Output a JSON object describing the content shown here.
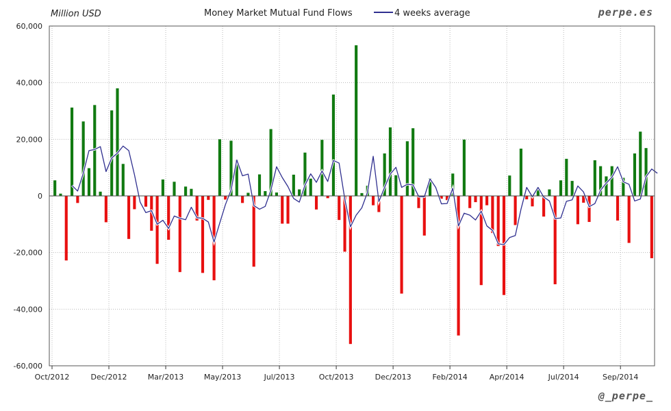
{
  "chart_data": {
    "type": "bar",
    "title": "Money Market Mutual Fund Flows",
    "ylabel": "Million USD",
    "legend": [
      {
        "name": "4 weeks average",
        "color": "#2f2f8f"
      }
    ],
    "watermark_top": "perpe.es",
    "watermark_bottom": "@_perpe_",
    "ylim": [
      -60000,
      60000
    ],
    "yticks": [
      {
        "value": 60000,
        "label": "60,000"
      },
      {
        "value": 40000,
        "label": "40,000"
      },
      {
        "value": 20000,
        "label": "20,000"
      },
      {
        "value": 0,
        "label": "0"
      },
      {
        "value": -20000,
        "label": "-20,000"
      },
      {
        "value": -40000,
        "label": "-40,000"
      },
      {
        "value": -60000,
        "label": "-60,000"
      }
    ],
    "xticks": [
      {
        "week": 0,
        "label": "Oct/2012"
      },
      {
        "week": 10,
        "label": "Dec/2012"
      },
      {
        "week": 20,
        "label": "Mar/2013"
      },
      {
        "week": 30,
        "label": "May/2013"
      },
      {
        "week": 40,
        "label": "Jul/2013"
      },
      {
        "week": 50,
        "label": "Oct/2013"
      },
      {
        "week": 60,
        "label": "Dec/2013"
      },
      {
        "week": 70,
        "label": "Feb/2014"
      },
      {
        "week": 80,
        "label": "Apr/2014"
      },
      {
        "week": 90,
        "label": "Jul/2014"
      },
      {
        "week": 100,
        "label": "Sep/2014"
      }
    ],
    "colors": {
      "positive": "#117a11",
      "negative": "#e81010",
      "average": "#2f2f8f",
      "grid": "#b8b8b8"
    },
    "series": [
      {
        "name": "Weekly flows",
        "values": [
          5500,
          800,
          -22800,
          31200,
          -2500,
          26300,
          9800,
          32100,
          1500,
          -9300,
          30200,
          38000,
          11300,
          -15200,
          -4700,
          100,
          -3800,
          -12300,
          -24000,
          5800,
          -15500,
          5000,
          -26900,
          3300,
          2500,
          -8700,
          -27200,
          -1400,
          -29800,
          20000,
          -1300,
          19500,
          12700,
          -2500,
          1100,
          -25000,
          7600,
          1700,
          23600,
          1200,
          -9800,
          -9800,
          7500,
          2300,
          15300,
          6100,
          -4800,
          19800,
          -800,
          35800,
          -8500,
          -19700,
          -52300,
          53200,
          1000,
          3600,
          -3300,
          -5700,
          15000,
          24200,
          7300,
          -34500,
          19300,
          23900,
          -4300,
          -14000,
          6200,
          100,
          -1000,
          -1500,
          7900,
          -49300,
          19900,
          -4300,
          -2200,
          -31500,
          -3300,
          -13100,
          -17700,
          -35000,
          7200,
          -10300,
          16700,
          -1200,
          -3700,
          3000,
          -7300,
          2300,
          -31200,
          5500,
          13100,
          5300,
          -10000,
          -2400,
          -9200,
          12600,
          10500,
          6900,
          10500,
          -8700,
          6400,
          -16600,
          15000,
          22700,
          16900,
          -22000
        ]
      },
      {
        "name": "4 weeks average",
        "values": [
          null,
          null,
          null,
          3700,
          1700,
          8000,
          16000,
          16400,
          17400,
          8600,
          13400,
          15100,
          17600,
          16000,
          7500,
          -2200,
          -5900,
          -5200,
          -10000,
          -8600,
          -11500,
          -7100,
          -7900,
          -8400,
          -4000,
          -7700,
          -7900,
          -9200,
          -16300,
          -9600,
          -3100,
          2100,
          12700,
          7100,
          7700,
          -3400,
          -4700,
          -3700,
          2000,
          10300,
          6500,
          3300,
          -900,
          -2200,
          3800,
          7800,
          4800,
          8800,
          5100,
          12500,
          11600,
          -1100,
          -10900,
          -6800,
          -4200,
          1300,
          14000,
          -2000,
          3000,
          7700,
          10100,
          3000,
          4100,
          3900,
          -200,
          -300,
          6000,
          3000,
          -2800,
          -2700,
          2700,
          -10600,
          -6100,
          -6800,
          -8500,
          -5400,
          -10600,
          -12200,
          -16900,
          -17200,
          -14700,
          -14000,
          -4700,
          3000,
          -300,
          3000,
          -400,
          -1800,
          -8000,
          -7800,
          -1900,
          -1400,
          3500,
          1400,
          -3800,
          -2700,
          2000,
          4500,
          6600,
          10300,
          5000,
          4100,
          -1800,
          -1100,
          6800,
          9500,
          8000
        ]
      }
    ]
  }
}
